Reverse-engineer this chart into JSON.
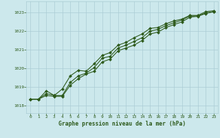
{
  "title": "Graphe pression niveau de la mer (hPa)",
  "bg_color": "#cce8ec",
  "grid_color": "#aaccd4",
  "line_color": "#2d5a1b",
  "x_ticks": [
    0,
    1,
    2,
    3,
    4,
    5,
    6,
    7,
    8,
    9,
    10,
    11,
    12,
    13,
    14,
    15,
    16,
    17,
    18,
    19,
    20,
    21,
    22,
    23
  ],
  "y_ticks": [
    1018,
    1019,
    1020,
    1021,
    1022,
    1023
  ],
  "xlim": [
    -0.5,
    23.5
  ],
  "ylim": [
    1017.6,
    1023.6
  ],
  "series1": [
    1018.35,
    1018.35,
    1018.55,
    1018.5,
    1018.5,
    1019.1,
    1019.45,
    1019.7,
    1019.85,
    1020.35,
    1020.5,
    1020.95,
    1021.1,
    1021.25,
    1021.5,
    1021.85,
    1021.95,
    1022.2,
    1022.35,
    1022.5,
    1022.75,
    1022.8,
    1022.95,
    1023.05
  ],
  "series2": [
    1018.35,
    1018.35,
    1018.65,
    1018.55,
    1018.55,
    1019.25,
    1019.6,
    1019.75,
    1020.05,
    1020.55,
    1020.65,
    1021.1,
    1021.25,
    1021.45,
    1021.65,
    1022.0,
    1022.1,
    1022.3,
    1022.45,
    1022.6,
    1022.82,
    1022.82,
    1022.98,
    1023.05
  ],
  "series3": [
    1018.35,
    1018.35,
    1018.8,
    1018.55,
    1018.9,
    1019.6,
    1019.9,
    1019.85,
    1020.25,
    1020.7,
    1020.85,
    1021.25,
    1021.4,
    1021.65,
    1021.85,
    1022.15,
    1022.2,
    1022.4,
    1022.55,
    1022.65,
    1022.85,
    1022.85,
    1023.05,
    1023.1
  ]
}
